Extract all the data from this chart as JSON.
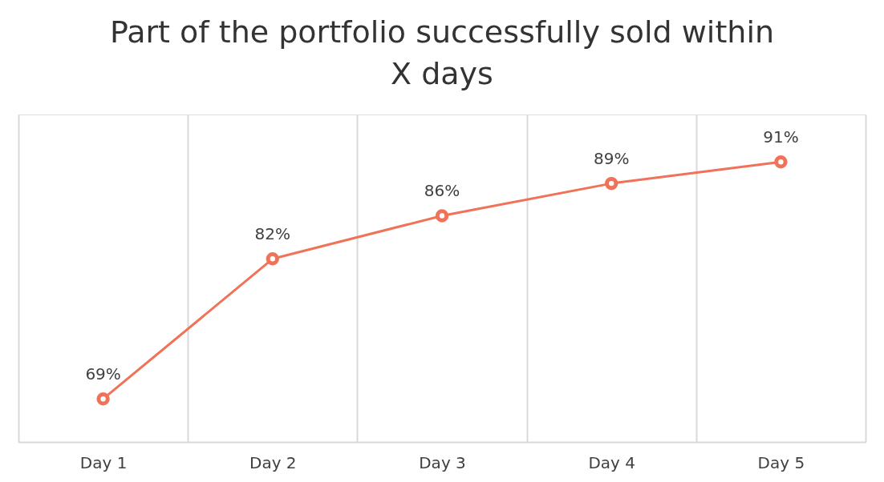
{
  "chart_data": {
    "type": "line",
    "title": "Part of the portfolio successfully sold within X days",
    "categories": [
      "Day 1",
      "Day 2",
      "Day 3",
      "Day 4",
      "Day 5"
    ],
    "values": [
      69,
      82,
      86,
      89,
      91
    ],
    "value_labels": [
      "69%",
      "82%",
      "86%",
      "89%",
      "91%"
    ],
    "color": "#ef7259",
    "ylim": [
      65,
      95.4
    ],
    "tick_labels": "x",
    "grid": "x",
    "marker": "circle",
    "line_style": "solid"
  }
}
